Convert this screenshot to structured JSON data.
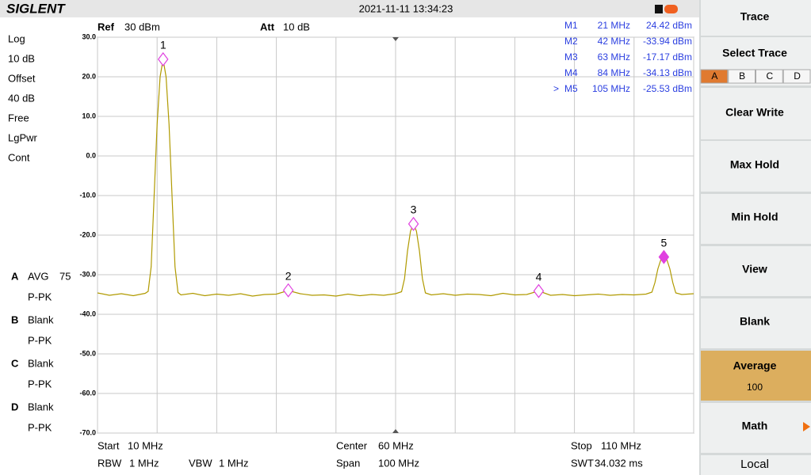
{
  "header": {
    "brand": "SIGLENT",
    "datetime": "2021-11-11 13:34:23"
  },
  "settings": {
    "ref_label": "Ref",
    "ref_value": "30 dBm",
    "att_label": "Att",
    "att_value": "10 dB"
  },
  "left_panel": {
    "items": [
      "Log",
      "10 dB",
      "Offset",
      "40 dB",
      "Free",
      "LgPwr",
      "Cont"
    ],
    "traces": [
      {
        "letter": "A",
        "mode": "AVG",
        "count": "75",
        "detector": "P-PK"
      },
      {
        "letter": "B",
        "mode": "Blank",
        "detector": "P-PK"
      },
      {
        "letter": "C",
        "mode": "Blank",
        "detector": "P-PK"
      },
      {
        "letter": "D",
        "mode": "Blank",
        "detector": "P-PK"
      }
    ]
  },
  "chart_data": {
    "type": "line",
    "color": "#b09a00",
    "grid": true,
    "xlim": [
      10,
      110
    ],
    "ylim": [
      -70,
      30
    ],
    "xticks": [
      10,
      20,
      30,
      40,
      50,
      60,
      70,
      80,
      90,
      100,
      110
    ],
    "yticks": [
      {
        "value": 30,
        "label": "30.0"
      },
      {
        "value": 20,
        "label": "20.0"
      },
      {
        "value": 10,
        "label": "10.0"
      },
      {
        "value": 0,
        "label": "0.0"
      },
      {
        "value": -10,
        "label": "-10.0"
      },
      {
        "value": -20,
        "label": "-20.0"
      },
      {
        "value": -30,
        "label": "-30.0"
      },
      {
        "value": -40,
        "label": "-40.0"
      },
      {
        "value": -50,
        "label": "-50.0"
      },
      {
        "value": -60,
        "label": "-60.0"
      },
      {
        "value": -70,
        "label": "-70.0"
      }
    ],
    "x": [
      10,
      12,
      14,
      16,
      18,
      18.5,
      19,
      19.5,
      20,
      20.5,
      21,
      21.5,
      22,
      22.5,
      23,
      23.5,
      24,
      26,
      28,
      30,
      32,
      34,
      36,
      38,
      40,
      42,
      44,
      46,
      48,
      50,
      52,
      54,
      56,
      58,
      60,
      61,
      61.5,
      62,
      62.5,
      63,
      63.5,
      64,
      64.5,
      65,
      66,
      68,
      70,
      72,
      74,
      76,
      78,
      80,
      82,
      84,
      86,
      88,
      90,
      92,
      94,
      96,
      98,
      100,
      102,
      103,
      103.5,
      104,
      104.5,
      105,
      105.5,
      106,
      106.5,
      107,
      108,
      110
    ],
    "values": [
      -34.6,
      -35.2,
      -34.8,
      -35.3,
      -34.7,
      -34.2,
      -28,
      -10,
      8,
      20,
      24.42,
      20,
      8,
      -10,
      -28,
      -34.5,
      -35.1,
      -34.7,
      -35.3,
      -34.9,
      -35.2,
      -34.8,
      -35.4,
      -35.0,
      -34.9,
      -34.0,
      -34.8,
      -35.2,
      -35.1,
      -35.4,
      -34.9,
      -35.3,
      -35.0,
      -35.2,
      -34.8,
      -34.3,
      -31,
      -24,
      -19,
      -17.17,
      -19,
      -24,
      -31,
      -34.6,
      -35.1,
      -34.8,
      -35.2,
      -34.9,
      -35.0,
      -35.3,
      -34.7,
      -35.1,
      -35.0,
      -34.1,
      -35.2,
      -35.0,
      -35.3,
      -35.1,
      -34.9,
      -35.2,
      -35.0,
      -35.1,
      -34.9,
      -34.4,
      -32,
      -28.5,
      -26.2,
      -25.53,
      -26.2,
      -28.5,
      -32,
      -34.6,
      -35.0,
      -34.8
    ],
    "marker_color": "#e040e0",
    "markers": [
      {
        "name": "M1",
        "label": "1",
        "x": 21,
        "x_label": "21 MHz",
        "value": 24.42,
        "value_label": "24.42 dBm"
      },
      {
        "name": "M2",
        "label": "2",
        "x": 42,
        "x_label": "42 MHz",
        "value": -33.94,
        "value_label": "-33.94 dBm"
      },
      {
        "name": "M3",
        "label": "3",
        "x": 63,
        "x_label": "63 MHz",
        "value": -17.17,
        "value_label": "-17.17 dBm"
      },
      {
        "name": "M4",
        "label": "4",
        "x": 84,
        "x_label": "84 MHz",
        "value": -34.13,
        "value_label": "-34.13 dBm"
      },
      {
        "name": "M5",
        "label": "5",
        "x": 105,
        "x_label": "105 MHz",
        "value": -25.53,
        "value_label": "-25.53 dBm",
        "prefix": ">"
      }
    ]
  },
  "footer": {
    "start_label": "Start",
    "start": "10 MHz",
    "center_label": "Center",
    "center": "60 MHz",
    "stop_label": "Stop",
    "stop": "110 MHz",
    "rbw_label": "RBW",
    "rbw": "1 MHz",
    "vbw_label": "VBW",
    "vbw": "1 MHz",
    "span_label": "Span",
    "span": "100 MHz",
    "swt_label": "SWT",
    "swt": "34.032 ms"
  },
  "softkeys": {
    "title": "Trace",
    "select": "Select Trace",
    "select_options": [
      "A",
      "B",
      "C",
      "D"
    ],
    "clear_write": "Clear Write",
    "max_hold": "Max Hold",
    "min_hold": "Min Hold",
    "view": "View",
    "blank": "Blank",
    "average": "Average",
    "average_value": "100",
    "math": "Math",
    "local": "Local"
  }
}
